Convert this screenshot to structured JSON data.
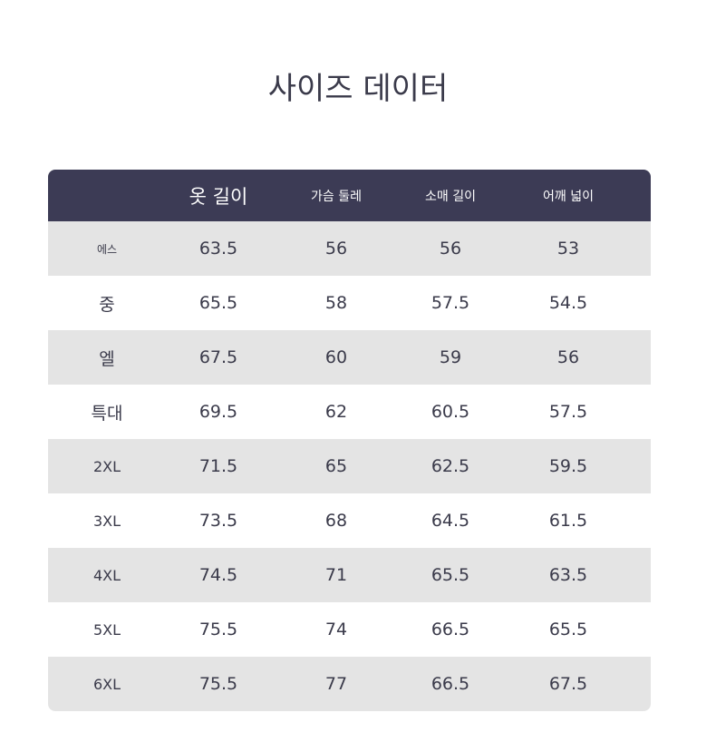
{
  "title": "사이즈 데이터",
  "headers": [
    "",
    "옷 길이",
    "가슴 둘레",
    "소매 길이",
    "어깨 넓이"
  ],
  "rows": [
    [
      "에스",
      "63.5",
      "56",
      "56",
      "53"
    ],
    [
      "중",
      "65.5",
      "58",
      "57.5",
      "54.5"
    ],
    [
      "엘",
      "67.5",
      "60",
      "59",
      "56"
    ],
    [
      "특대",
      "69.5",
      "62",
      "60.5",
      "57.5"
    ],
    [
      "2XL",
      "71.5",
      "65",
      "62.5",
      "59.5"
    ],
    [
      "3XL",
      "73.5",
      "68",
      "64.5",
      "61.5"
    ],
    [
      "4XL",
      "74.5",
      "71",
      "65.5",
      "63.5"
    ],
    [
      "5XL",
      "75.5",
      "74",
      "66.5",
      "65.5"
    ],
    [
      "6XL",
      "75.5",
      "77",
      "66.5",
      "67.5"
    ]
  ],
  "colors": {
    "header_bg": "#3c3b55",
    "alt_row": "#e4e4e4"
  }
}
